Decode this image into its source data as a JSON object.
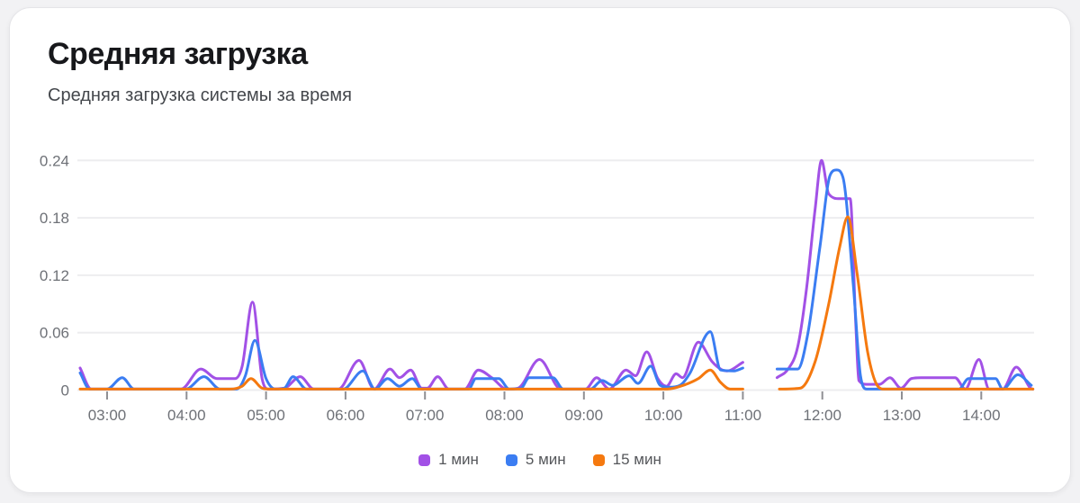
{
  "header": {
    "title": "Средняя загрузка",
    "subtitle": "Средняя загрузка системы за время"
  },
  "colors": {
    "grid": "#EDEDEF",
    "tick": "#8F8F93",
    "axis_text": "#6E7177",
    "series_1min": "#A251E6",
    "series_5min": "#3B7DF2",
    "series_15min": "#F5790F"
  },
  "chart_data": {
    "type": "line",
    "title": "Средняя загрузка",
    "xlabel": "",
    "ylabel": "",
    "x_unit": "time of day (HH:MM)",
    "ylim": [
      0,
      0.255
    ],
    "xlim_hours": [
      2.62,
      14.68
    ],
    "grid": "horizontal",
    "legend_position": "bottom-center",
    "data_gap_hours": [
      11.0,
      11.43
    ],
    "y_axis": {
      "ticks": [
        {
          "value": 0,
          "label": "0"
        },
        {
          "value": 0.06,
          "label": "0.06"
        },
        {
          "value": 0.12,
          "label": "0.12"
        },
        {
          "value": 0.18,
          "label": "0.18"
        },
        {
          "value": 0.24,
          "label": "0.24"
        }
      ]
    },
    "x_axis": {
      "ticks": [
        {
          "hour": 3,
          "label": "03:00"
        },
        {
          "hour": 4,
          "label": "04:00"
        },
        {
          "hour": 5,
          "label": "05:00"
        },
        {
          "hour": 6,
          "label": "06:00"
        },
        {
          "hour": 7,
          "label": "07:00"
        },
        {
          "hour": 8,
          "label": "08:00"
        },
        {
          "hour": 9,
          "label": "09:00"
        },
        {
          "hour": 10,
          "label": "10:00"
        },
        {
          "hour": 11,
          "label": "11:00"
        },
        {
          "hour": 12,
          "label": "12:00"
        },
        {
          "hour": 13,
          "label": "13:00"
        },
        {
          "hour": 14,
          "label": "14:00"
        }
      ]
    },
    "series": [
      {
        "id": "1min",
        "name": "1 мин",
        "color": "#A251E6",
        "segments": [
          [
            [
              2.66,
              0.023
            ],
            [
              2.8,
              0.001
            ],
            [
              3.0,
              0.001
            ],
            [
              3.36,
              0.001
            ],
            [
              3.93,
              0.001
            ],
            [
              4.18,
              0.022
            ],
            [
              4.38,
              0.012
            ],
            [
              4.61,
              0.012
            ],
            [
              4.7,
              0.025
            ],
            [
              4.83,
              0.092
            ],
            [
              4.95,
              0.012
            ],
            [
              5.03,
              0.001
            ],
            [
              5.23,
              0.002
            ],
            [
              5.43,
              0.014
            ],
            [
              5.6,
              0.001
            ],
            [
              5.91,
              0.001
            ],
            [
              6.17,
              0.031
            ],
            [
              6.36,
              0.001
            ],
            [
              6.56,
              0.022
            ],
            [
              6.68,
              0.013
            ],
            [
              6.82,
              0.021
            ],
            [
              6.96,
              0.002
            ],
            [
              7.03,
              0.002
            ],
            [
              7.16,
              0.014
            ],
            [
              7.3,
              0.001
            ],
            [
              7.5,
              0.001
            ],
            [
              7.67,
              0.021
            ],
            [
              7.84,
              0.013
            ],
            [
              8.03,
              0.001
            ],
            [
              8.17,
              0.002
            ],
            [
              8.44,
              0.032
            ],
            [
              8.71,
              0.001
            ],
            [
              9.02,
              0.001
            ],
            [
              9.16,
              0.013
            ],
            [
              9.32,
              0.001
            ],
            [
              9.53,
              0.021
            ],
            [
              9.65,
              0.015
            ],
            [
              9.79,
              0.04
            ],
            [
              9.93,
              0.012
            ],
            [
              10.04,
              0.004
            ],
            [
              10.16,
              0.017
            ],
            [
              10.24,
              0.013
            ],
            [
              10.44,
              0.05
            ],
            [
              10.61,
              0.03
            ],
            [
              10.72,
              0.022
            ],
            [
              10.8,
              0.02
            ],
            [
              11.0,
              0.029
            ]
          ],
          [
            [
              11.43,
              0.013
            ],
            [
              11.57,
              0.022
            ],
            [
              11.69,
              0.045
            ],
            [
              11.8,
              0.105
            ],
            [
              11.91,
              0.19
            ],
            [
              11.99,
              0.24
            ],
            [
              12.08,
              0.205
            ],
            [
              12.22,
              0.2
            ],
            [
              12.35,
              0.2
            ],
            [
              12.42,
              0.07
            ],
            [
              12.46,
              0.01
            ],
            [
              12.56,
              0.006
            ],
            [
              12.72,
              0.006
            ],
            [
              12.85,
              0.013
            ],
            [
              12.99,
              0.002
            ],
            [
              13.12,
              0.012
            ],
            [
              13.24,
              0.013
            ],
            [
              13.67,
              0.013
            ],
            [
              13.8,
              0.001
            ],
            [
              13.97,
              0.032
            ],
            [
              14.1,
              0.001
            ],
            [
              14.27,
              0.001
            ],
            [
              14.44,
              0.024
            ],
            [
              14.62,
              0.002
            ],
            [
              14.65,
              0.001
            ]
          ]
        ]
      },
      {
        "id": "5min",
        "name": "5 мин",
        "color": "#3B7DF2",
        "segments": [
          [
            [
              2.66,
              0.018
            ],
            [
              2.78,
              0.001
            ],
            [
              3.0,
              0.001
            ],
            [
              3.19,
              0.013
            ],
            [
              3.34,
              0.001
            ],
            [
              3.99,
              0.001
            ],
            [
              4.22,
              0.014
            ],
            [
              4.42,
              0.001
            ],
            [
              4.63,
              0.001
            ],
            [
              4.74,
              0.015
            ],
            [
              4.86,
              0.052
            ],
            [
              5.0,
              0.012
            ],
            [
              5.12,
              0.001
            ],
            [
              5.23,
              0.002
            ],
            [
              5.34,
              0.014
            ],
            [
              5.51,
              0.001
            ],
            [
              5.97,
              0.001
            ],
            [
              6.22,
              0.02
            ],
            [
              6.37,
              0.001
            ],
            [
              6.53,
              0.012
            ],
            [
              6.68,
              0.004
            ],
            [
              6.84,
              0.012
            ],
            [
              6.96,
              0.001
            ],
            [
              7.55,
              0.001
            ],
            [
              7.64,
              0.012
            ],
            [
              7.93,
              0.012
            ],
            [
              8.06,
              0.001
            ],
            [
              8.21,
              0.002
            ],
            [
              8.31,
              0.013
            ],
            [
              8.61,
              0.013
            ],
            [
              8.74,
              0.001
            ],
            [
              9.08,
              0.001
            ],
            [
              9.23,
              0.01
            ],
            [
              9.36,
              0.005
            ],
            [
              9.57,
              0.015
            ],
            [
              9.68,
              0.007
            ],
            [
              9.84,
              0.025
            ],
            [
              9.96,
              0.005
            ],
            [
              10.07,
              0.003
            ],
            [
              10.21,
              0.005
            ],
            [
              10.33,
              0.017
            ],
            [
              10.59,
              0.061
            ],
            [
              10.72,
              0.021
            ],
            [
              10.89,
              0.02
            ],
            [
              11.0,
              0.023
            ]
          ],
          [
            [
              11.43,
              0.022
            ],
            [
              11.69,
              0.022
            ],
            [
              11.82,
              0.06
            ],
            [
              11.97,
              0.15
            ],
            [
              12.1,
              0.225
            ],
            [
              12.18,
              0.23
            ],
            [
              12.26,
              0.222
            ],
            [
              12.39,
              0.11
            ],
            [
              12.48,
              0.015
            ],
            [
              12.56,
              0.001
            ],
            [
              13.72,
              0.001
            ],
            [
              13.84,
              0.012
            ],
            [
              14.01,
              0.012
            ],
            [
              14.18,
              0.012
            ],
            [
              14.27,
              0.001
            ],
            [
              14.46,
              0.016
            ],
            [
              14.63,
              0.005
            ]
          ]
        ]
      },
      {
        "id": "15min",
        "name": "15 мин",
        "color": "#F5790F",
        "segments": [
          [
            [
              2.66,
              0.001
            ],
            [
              4.55,
              0.001
            ],
            [
              4.7,
              0.004
            ],
            [
              4.81,
              0.012
            ],
            [
              4.95,
              0.002
            ],
            [
              5.05,
              0.001
            ],
            [
              10.05,
              0.001
            ],
            [
              10.25,
              0.005
            ],
            [
              10.44,
              0.012
            ],
            [
              10.59,
              0.021
            ],
            [
              10.72,
              0.008
            ],
            [
              10.84,
              0.001
            ],
            [
              11.0,
              0.001
            ]
          ],
          [
            [
              11.46,
              0.001
            ],
            [
              11.72,
              0.002
            ],
            [
              11.91,
              0.03
            ],
            [
              12.08,
              0.09
            ],
            [
              12.22,
              0.15
            ],
            [
              12.32,
              0.181
            ],
            [
              12.44,
              0.12
            ],
            [
              12.57,
              0.04
            ],
            [
              12.69,
              0.005
            ],
            [
              12.78,
              0.001
            ],
            [
              14.65,
              0.001
            ]
          ]
        ]
      }
    ]
  },
  "legend": {
    "items": [
      {
        "label": "1 мин"
      },
      {
        "label": "5 мин"
      },
      {
        "label": "15 мин"
      }
    ]
  }
}
